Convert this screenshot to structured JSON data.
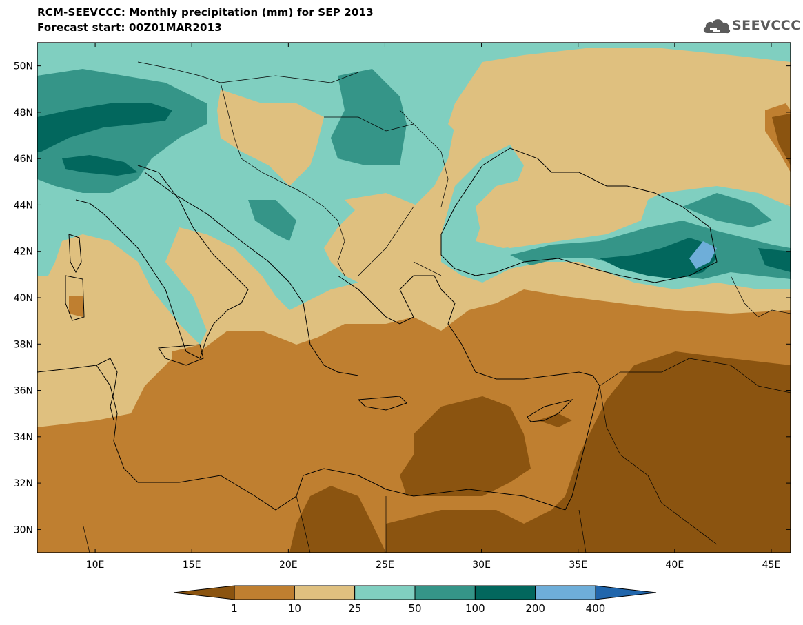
{
  "title": {
    "line1": "RCM-SEEVCCC: Monthly precipitation (mm) for SEP 2013",
    "line2": "Forecast start: 00Z01MAR2013"
  },
  "logo": {
    "text": "SEEVCCC"
  },
  "axes": {
    "lon_range": [
      7,
      46
    ],
    "lat_range": [
      29,
      51
    ],
    "x_ticks": [
      {
        "value": 10,
        "label": "10E"
      },
      {
        "value": 15,
        "label": "15E"
      },
      {
        "value": 20,
        "label": "20E"
      },
      {
        "value": 25,
        "label": "25E"
      },
      {
        "value": 30,
        "label": "30E"
      },
      {
        "value": 35,
        "label": "35E"
      },
      {
        "value": 40,
        "label": "40E"
      },
      {
        "value": 45,
        "label": "45E"
      }
    ],
    "y_ticks": [
      {
        "value": 30,
        "label": "30N"
      },
      {
        "value": 32,
        "label": "32N"
      },
      {
        "value": 34,
        "label": "34N"
      },
      {
        "value": 36,
        "label": "36N"
      },
      {
        "value": 38,
        "label": "38N"
      },
      {
        "value": 40,
        "label": "40N"
      },
      {
        "value": 42,
        "label": "42N"
      },
      {
        "value": 44,
        "label": "44N"
      },
      {
        "value": 46,
        "label": "46N"
      },
      {
        "value": 48,
        "label": "48N"
      },
      {
        "value": 50,
        "label": "50N"
      }
    ]
  },
  "colorbar": {
    "labels": [
      "1",
      "10",
      "25",
      "50",
      "100",
      "200",
      "400"
    ],
    "colors": [
      "#8b5410",
      "#bf7f30",
      "#dfc07f",
      "#80cfc0",
      "#359588",
      "#02675d",
      "#6eaed9",
      "#2166ac"
    ]
  }
}
